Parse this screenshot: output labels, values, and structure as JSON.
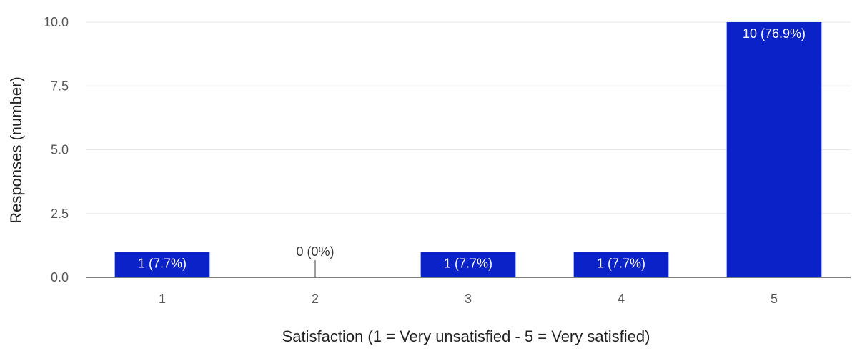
{
  "chart_data": {
    "type": "bar",
    "categories": [
      "1",
      "2",
      "3",
      "4",
      "5"
    ],
    "values": [
      1,
      0,
      1,
      1,
      10
    ],
    "data_labels": [
      "1 (7.7%)",
      "0 (0%)",
      "1 (7.7%)",
      "1 (7.7%)",
      "10 (76.9%)"
    ],
    "title": "",
    "xlabel": "Satisfaction (1 = Very unsatisfied - 5 = Very satisfied)",
    "ylabel": "Responses (number)",
    "ylim": [
      0,
      10
    ],
    "y_ticks": [
      "0.0",
      "2.5",
      "5.0",
      "7.5",
      "10.0"
    ],
    "grid": true,
    "legend": "none",
    "colors": {
      "bar": "#0a22c8",
      "label_inside": "#ffffff",
      "label_outside": "#333333",
      "zero_marker": "#9e9e9e"
    }
  }
}
